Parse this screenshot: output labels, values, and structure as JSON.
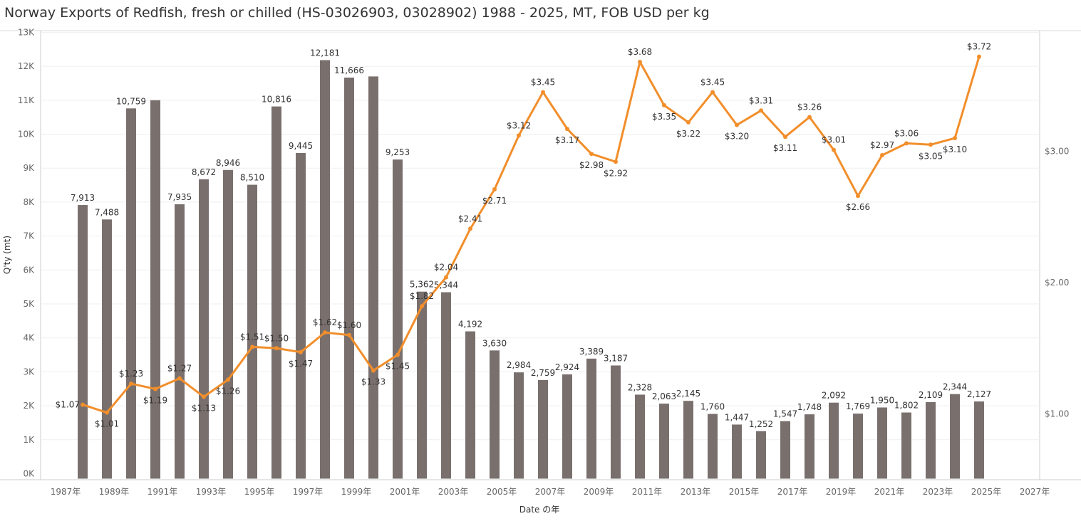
{
  "chart_data": {
    "type": "bar+line",
    "title": "Norway Exports of Redfish, fresh or chilled (HS-03026903, 03028902) 1988 - 2025, MT, FOB USD per kg",
    "xlabel": "Date の年",
    "ylabel": "Q'ty (mt)",
    "x_ticks": [
      "1987年",
      "1989年",
      "1991年",
      "1993年",
      "1995年",
      "1997年",
      "1999年",
      "2001年",
      "2003年",
      "2005年",
      "2007年",
      "2009年",
      "2011年",
      "2013年",
      "2015年",
      "2017年",
      "2019年",
      "2021年",
      "2023年",
      "2025年",
      "2027年"
    ],
    "y_ticks": [
      "0K",
      "1K",
      "2K",
      "3K",
      "4K",
      "5K",
      "6K",
      "7K",
      "8K",
      "9K",
      "10K",
      "11K",
      "12K",
      "13K"
    ],
    "y2_ticks": [
      "$1.00",
      "$2.00",
      "$3.00"
    ],
    "ylim": [
      0,
      13000
    ],
    "y2lim": [
      0.52,
      3.95
    ],
    "xlim": [
      1987,
      2027
    ],
    "colors": {
      "bars": "#79706e",
      "line": "#f28e2b"
    },
    "years": [
      1988,
      1989,
      1990,
      1991,
      1992,
      1993,
      1994,
      1995,
      1996,
      1997,
      1998,
      1999,
      2000,
      2001,
      2002,
      2003,
      2004,
      2005,
      2006,
      2007,
      2008,
      2009,
      2010,
      2011,
      2012,
      2013,
      2014,
      2015,
      2016,
      2017,
      2018,
      2019,
      2020,
      2021,
      2022,
      2023,
      2024,
      2025
    ],
    "quantity": [
      7913,
      7488,
      10759,
      11000,
      7935,
      8672,
      8946,
      8510,
      10816,
      9445,
      12181,
      11666,
      11700,
      9253,
      5362,
      5344,
      4192,
      3630,
      2984,
      2759,
      2924,
      3389,
      3187,
      2328,
      2063,
      2145,
      1760,
      1447,
      1252,
      1547,
      1748,
      2092,
      1769,
      1950,
      1802,
      2109,
      2344,
      2127
    ],
    "quantity_labels": [
      "7,913",
      "7,488",
      "10,759",
      "",
      "7,935",
      "8,672",
      "8,946",
      "8,510",
      "10,816",
      "9,445",
      "12,181",
      "11,666",
      "",
      "9,253",
      "5,362",
      "5,344",
      "4,192",
      "3,630",
      "2,984",
      "2,759",
      "2,924",
      "3,389",
      "3,187",
      "2,328",
      "2,063",
      "2,145",
      "1,760",
      "1,447",
      "1,252",
      "1,547",
      "1,748",
      "2,092",
      "1,769",
      "1,950",
      "1,802",
      "2,109",
      "2,344",
      "2,127"
    ],
    "price": [
      1.07,
      1.01,
      1.23,
      1.19,
      1.27,
      1.13,
      1.26,
      1.51,
      1.5,
      1.47,
      1.62,
      1.6,
      1.33,
      1.45,
      1.82,
      2.04,
      2.41,
      2.71,
      3.12,
      3.45,
      3.17,
      2.98,
      2.92,
      3.68,
      3.35,
      3.22,
      3.45,
      3.2,
      3.31,
      3.11,
      3.26,
      3.01,
      2.66,
      2.97,
      3.06,
      3.05,
      3.1,
      3.72
    ],
    "price_labels": [
      "$1.07",
      "$1.01",
      "$1.23",
      "$1.19",
      "$1.27",
      "$1.13",
      "$1.26",
      "$1.51",
      "$1.50",
      "$1.47",
      "$1.62",
      "$1.60",
      "$1.33",
      "$1.45",
      "$1.82",
      "$2.04",
      "$2.41",
      "$2.71",
      "$3.12",
      "$3.45",
      "$3.17",
      "$2.98",
      "$2.92",
      "$3.68",
      "$3.35",
      "$3.22",
      "$3.45",
      "$3.20",
      "$3.31",
      "$3.11",
      "$3.26",
      "$3.01",
      "$2.66",
      "$2.97",
      "$3.06",
      "$3.05",
      "$3.10",
      "$3.72"
    ],
    "price_label_placement": [
      "left",
      "below",
      "above",
      "below",
      "above",
      "below",
      "below",
      "above",
      "above",
      "below",
      "above",
      "above",
      "below",
      "below",
      "above",
      "above",
      "above",
      "below",
      "above",
      "above",
      "below",
      "below",
      "below",
      "above",
      "below",
      "below",
      "above",
      "below",
      "above",
      "below",
      "above",
      "above",
      "below",
      "above",
      "above",
      "below",
      "below",
      "above"
    ]
  }
}
